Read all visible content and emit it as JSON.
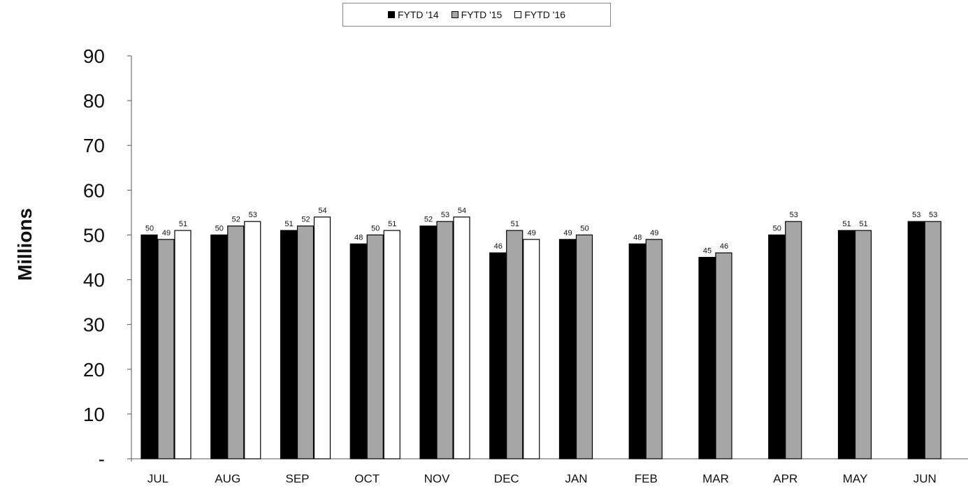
{
  "chart_data": {
    "type": "bar",
    "title": "",
    "xlabel": "",
    "ylabel": "Millions",
    "ylim": [
      0,
      90
    ],
    "y_ticks": [
      {
        "value": 0,
        "label": "-"
      },
      {
        "value": 10,
        "label": "10"
      },
      {
        "value": 20,
        "label": "20"
      },
      {
        "value": 30,
        "label": "30"
      },
      {
        "value": 40,
        "label": "40"
      },
      {
        "value": 50,
        "label": "50"
      },
      {
        "value": 60,
        "label": "60"
      },
      {
        "value": 70,
        "label": "70"
      },
      {
        "value": 80,
        "label": "80"
      },
      {
        "value": 90,
        "label": "90"
      }
    ],
    "categories": [
      "JUL",
      "AUG",
      "SEP",
      "OCT",
      "NOV",
      "DEC",
      "JAN",
      "FEB",
      "MAR",
      "APR",
      "MAY",
      "JUN"
    ],
    "legend_position": "top-center",
    "grid": false,
    "series": [
      {
        "name": "FYTD '14",
        "color": "#000000",
        "values": [
          50,
          50,
          51,
          48,
          52,
          46,
          49,
          48,
          45,
          50,
          51,
          53
        ]
      },
      {
        "name": "FYTD '15",
        "color": "#a6a6a6",
        "values": [
          49,
          52,
          52,
          50,
          53,
          51,
          50,
          49,
          46,
          53,
          51,
          53
        ]
      },
      {
        "name": "FYTD '16",
        "color": "#ffffff",
        "values": [
          51,
          53,
          54,
          51,
          54,
          49,
          null,
          null,
          null,
          null,
          null,
          null
        ]
      }
    ]
  }
}
